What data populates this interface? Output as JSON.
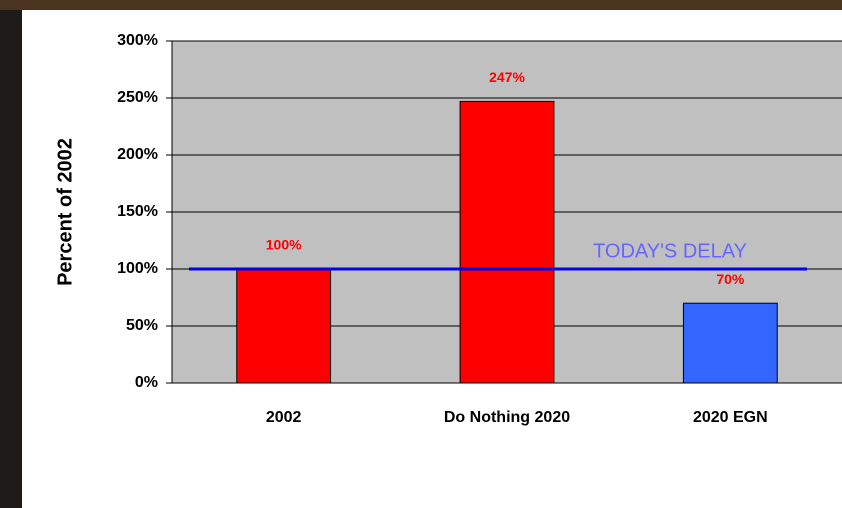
{
  "chart_data": {
    "type": "bar",
    "y_label": "Percent of 2002",
    "categories": [
      "2002",
      "Do Nothing 2020",
      "2020 EGN"
    ],
    "values": [
      100,
      247,
      70
    ],
    "value_labels": [
      "100%",
      "247%",
      "70%"
    ],
    "colors": [
      "#ff0000",
      "#ff0000",
      "#3366ff"
    ],
    "ylim": [
      0,
      300
    ],
    "yticks": [
      {
        "value": 0,
        "label": "0%"
      },
      {
        "value": 50,
        "label": "50%"
      },
      {
        "value": 100,
        "label": "100%"
      },
      {
        "value": 150,
        "label": "150%"
      },
      {
        "value": 200,
        "label": "200%"
      },
      {
        "value": 250,
        "label": "250%"
      },
      {
        "value": 300,
        "label": "300%"
      }
    ],
    "grid": true,
    "reference_line": {
      "value": 100,
      "label": "TODAY'S DELAY",
      "color": "#0000ee"
    }
  }
}
